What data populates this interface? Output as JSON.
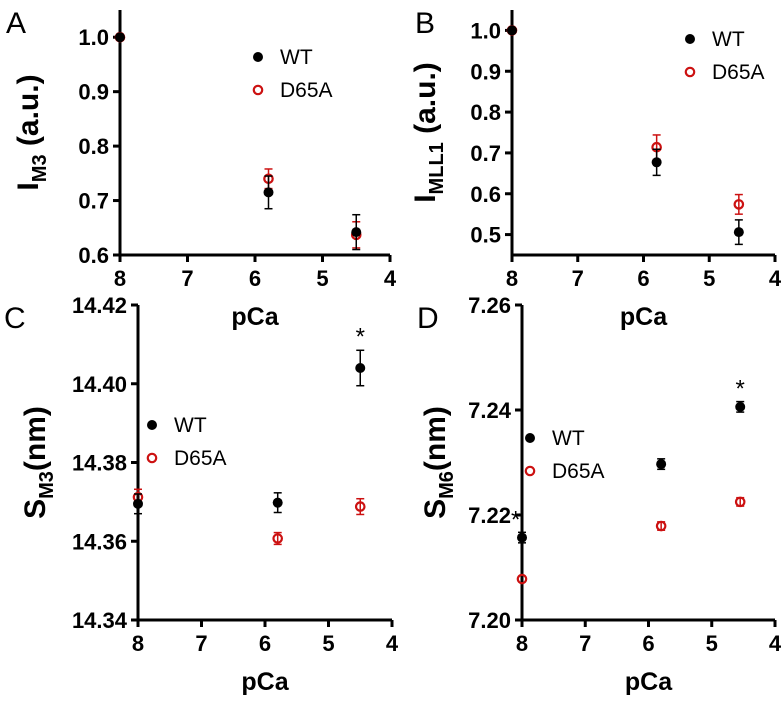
{
  "colors": {
    "wt": "#000000",
    "d65a": "#cc1111"
  },
  "chart_data": [
    {
      "panel": "A",
      "type": "scatter",
      "xlabel": "pCa",
      "ylabel_main": "I",
      "ylabel_sub": "M3",
      "ylabel_suffix": " (a.u.)",
      "xlim": [
        8,
        4
      ],
      "ylim": [
        0.6,
        1.05
      ],
      "xticks": [
        8,
        7,
        6,
        5,
        4
      ],
      "yticks": [
        0.6,
        0.7,
        0.8,
        0.9,
        1.0
      ],
      "ytick_labels": [
        "0.6",
        "0.7",
        "0.8",
        "0.9",
        "1.0"
      ],
      "legend": [
        "WT",
        "D65A"
      ],
      "series": [
        {
          "name": "WT",
          "x": [
            8.0,
            5.8,
            4.5
          ],
          "y": [
            1.0,
            0.715,
            0.642
          ],
          "err": [
            0.0,
            0.03,
            0.032
          ]
        },
        {
          "name": "D65A",
          "x": [
            8.0,
            5.8,
            4.5
          ],
          "y": [
            1.0,
            0.74,
            0.637
          ],
          "err": [
            0.0,
            0.018,
            0.024
          ]
        }
      ],
      "annotations": []
    },
    {
      "panel": "B",
      "type": "scatter",
      "xlabel": "pCa",
      "ylabel_main": "I",
      "ylabel_sub": "MLL1",
      "ylabel_suffix": " (a.u.)",
      "xlim": [
        8,
        4
      ],
      "ylim": [
        0.45,
        1.05
      ],
      "xticks": [
        8,
        7,
        6,
        5,
        4
      ],
      "yticks": [
        0.5,
        0.6,
        0.7,
        0.8,
        0.9,
        1.0
      ],
      "ytick_labels": [
        "0.5",
        "0.6",
        "0.7",
        "0.8",
        "0.9",
        "1.0"
      ],
      "legend": [
        "WT",
        "D65A"
      ],
      "series": [
        {
          "name": "WT",
          "x": [
            8.0,
            5.8,
            4.55
          ],
          "y": [
            1.0,
            0.677,
            0.506
          ],
          "err": [
            0.0,
            0.032,
            0.03
          ]
        },
        {
          "name": "D65A",
          "x": [
            8.0,
            5.8,
            4.55
          ],
          "y": [
            1.0,
            0.714,
            0.574
          ],
          "err": [
            0.0,
            0.03,
            0.024
          ]
        }
      ],
      "annotations": []
    },
    {
      "panel": "C",
      "type": "scatter",
      "xlabel": "pCa",
      "ylabel_main": "S",
      "ylabel_sub": "M3",
      "ylabel_suffix": "(nm)",
      "xlim": [
        8,
        4
      ],
      "ylim": [
        14.34,
        14.42
      ],
      "xticks": [
        8,
        7,
        6,
        5,
        4
      ],
      "yticks": [
        14.34,
        14.36,
        14.38,
        14.4,
        14.42
      ],
      "ytick_labels": [
        "14.34",
        "14.36",
        "14.38",
        "14.40",
        "14.42"
      ],
      "legend": [
        "WT",
        "D65A"
      ],
      "series": [
        {
          "name": "WT",
          "x": [
            8.0,
            5.8,
            4.5
          ],
          "y": [
            14.3695,
            14.3698,
            14.404
          ],
          "err": [
            0.0025,
            0.0025,
            0.0045
          ]
        },
        {
          "name": "D65A",
          "x": [
            8.0,
            5.8,
            4.5
          ],
          "y": [
            14.3712,
            14.3607,
            14.3688
          ],
          "err": [
            0.002,
            0.0015,
            0.002
          ]
        }
      ],
      "annotations": [
        {
          "text": "*",
          "x": 4.5,
          "y": 14.4125
        }
      ]
    },
    {
      "panel": "D",
      "type": "scatter",
      "xlabel": "pCa",
      "ylabel_main": "S",
      "ylabel_sub": "M6",
      "ylabel_suffix": "(nm)",
      "xlim": [
        8,
        4
      ],
      "ylim": [
        7.2,
        7.26
      ],
      "xticks": [
        8,
        7,
        6,
        5,
        4
      ],
      "yticks": [
        7.2,
        7.22,
        7.24,
        7.26
      ],
      "ytick_labels": [
        "7.20",
        "7.22",
        "7.24",
        "7.26"
      ],
      "legend": [
        "WT",
        "D65A"
      ],
      "series": [
        {
          "name": "WT",
          "x": [
            8.0,
            5.8,
            4.55
          ],
          "y": [
            7.2157,
            7.2297,
            7.2406
          ],
          "err": [
            0.001,
            0.001,
            0.001
          ]
        },
        {
          "name": "D65A",
          "x": [
            8.0,
            5.8,
            4.55
          ],
          "y": [
            7.2078,
            7.2179,
            7.2225
          ],
          "err": [
            0.0,
            0.0008,
            0.0008
          ]
        }
      ],
      "annotations": [
        {
          "text": "*",
          "x": 8.1,
          "y": 7.2195
        },
        {
          "text": "*",
          "x": 4.55,
          "y": 7.2445
        }
      ]
    }
  ]
}
